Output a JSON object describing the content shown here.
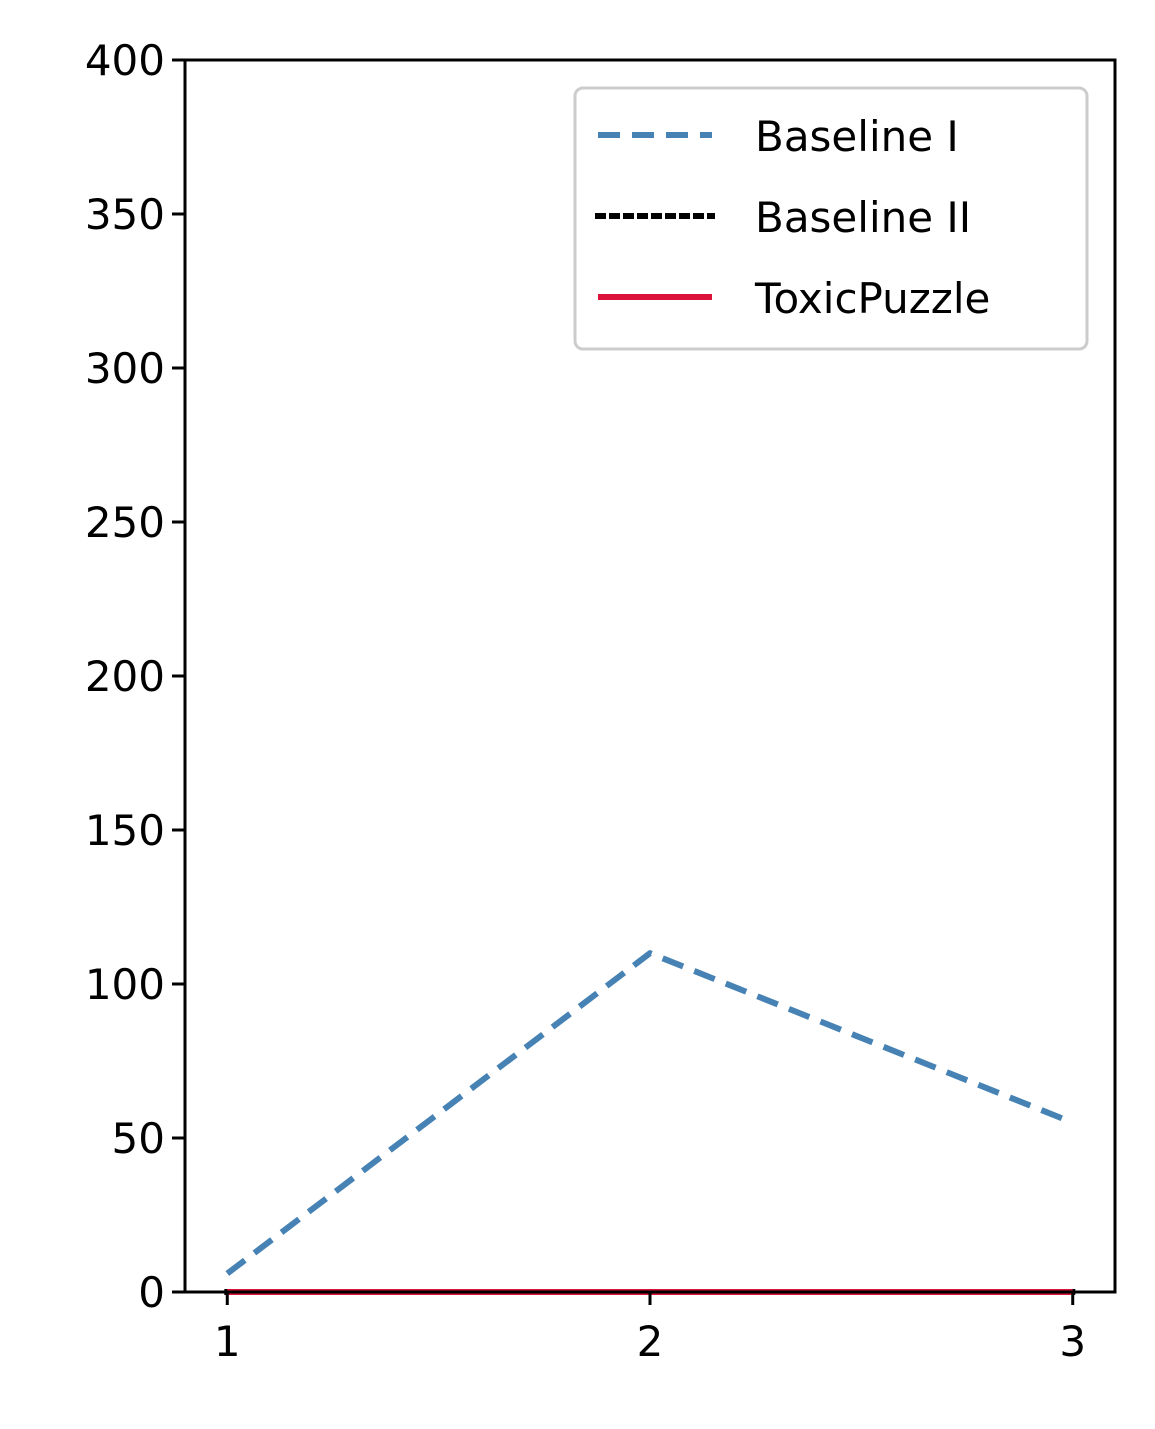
{
  "chart_data": {
    "type": "line",
    "title": "",
    "xlabel": "",
    "ylabel": "",
    "x": [
      1,
      2,
      3
    ],
    "x_ticks": [
      "1",
      "2",
      "3"
    ],
    "xlim": [
      0.9,
      3.1
    ],
    "ylim": [
      0,
      400
    ],
    "y_ticks": [
      0,
      50,
      100,
      150,
      200,
      250,
      300,
      350,
      400
    ],
    "grid": false,
    "legend_position": "top-right",
    "series": [
      {
        "name": "Baseline I",
        "values": [
          6,
          110,
          55
        ],
        "color": "#4682b4",
        "line_style": "dashed"
      },
      {
        "name": "Baseline II",
        "values": [
          0,
          0,
          0
        ],
        "color": "#000000",
        "line_style": "dotted"
      },
      {
        "name": "ToxicPuzzle",
        "values": [
          0,
          0,
          0
        ],
        "color": "#dc143c",
        "line_style": "solid"
      }
    ]
  }
}
